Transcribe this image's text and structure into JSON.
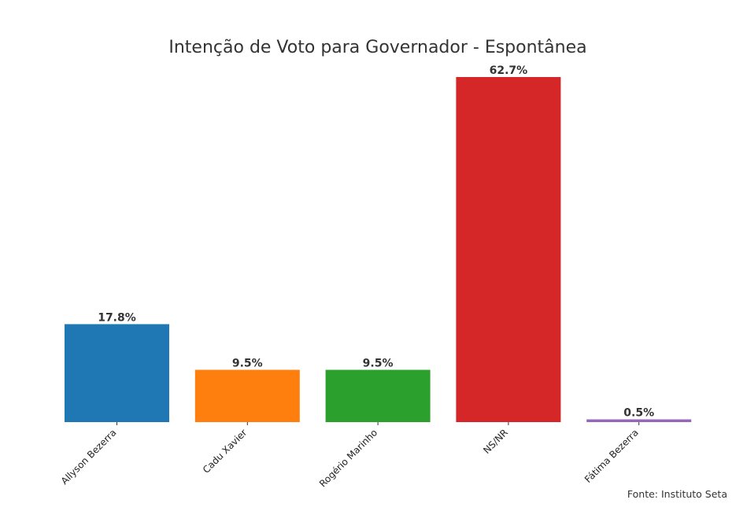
{
  "chart_data": {
    "type": "bar",
    "title": "Intenção de Voto para Governador - Espontânea",
    "categories": [
      "Allyson Bezerra",
      "Cadu Xavier",
      "Rogério Marinho",
      "NS/NR",
      "Fátima Bezerra"
    ],
    "values": [
      17.8,
      9.5,
      9.5,
      62.7,
      0.5
    ],
    "value_labels": [
      "17.8%",
      "9.5%",
      "9.5%",
      "62.7%",
      "0.5%"
    ],
    "colors": [
      "#1f77b4",
      "#ff7f0e",
      "#2ca02c",
      "#d62728",
      "#9467bd"
    ],
    "ylim": [
      0,
      62.7
    ],
    "xlabel": "",
    "ylabel": "",
    "grid": false,
    "legend": "none",
    "source": "Fonte: Instituto Seta"
  }
}
